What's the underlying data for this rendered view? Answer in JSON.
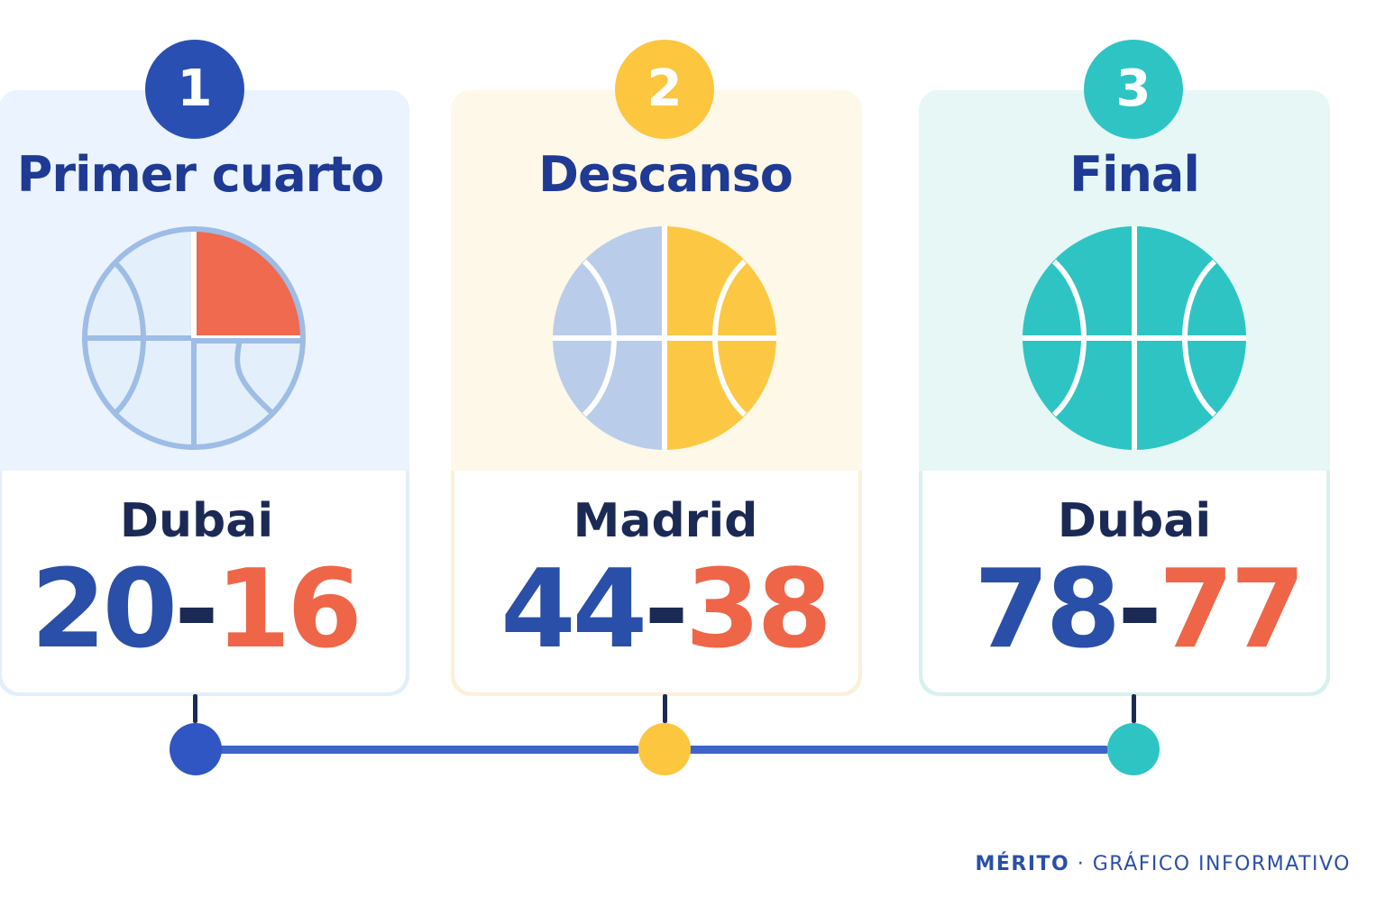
{
  "stages": [
    {
      "number": "1",
      "title": "Primer cuarto",
      "leader": "Dubai",
      "score_home": "20",
      "separator": "-",
      "score_away": "16"
    },
    {
      "number": "2",
      "title": "Descanso",
      "leader": "Madrid",
      "score_home": "44",
      "separator": "-",
      "score_away": "38"
    },
    {
      "number": "3",
      "title": "Final",
      "leader": "Dubai",
      "score_home": "78",
      "separator": "-",
      "score_away": "77"
    }
  ],
  "footer": {
    "brand": "MÉRITO",
    "dot": "·",
    "label": "GRÁFICO INFORMATIVO"
  },
  "colors": {
    "navy": "#1f3a93",
    "blue": "#2a4fa8",
    "red": "#ef6548",
    "yellow": "#fcc844",
    "teal": "#2ec4c4",
    "light_blue": "#b9cdea",
    "stage1_bg": "#e9f2fd",
    "stage2_bg": "#fef8e7",
    "stage3_bg": "#e5f7f5"
  },
  "icons": [
    "basketball-quarter-icon",
    "basketball-half-icon",
    "basketball-full-icon"
  ]
}
